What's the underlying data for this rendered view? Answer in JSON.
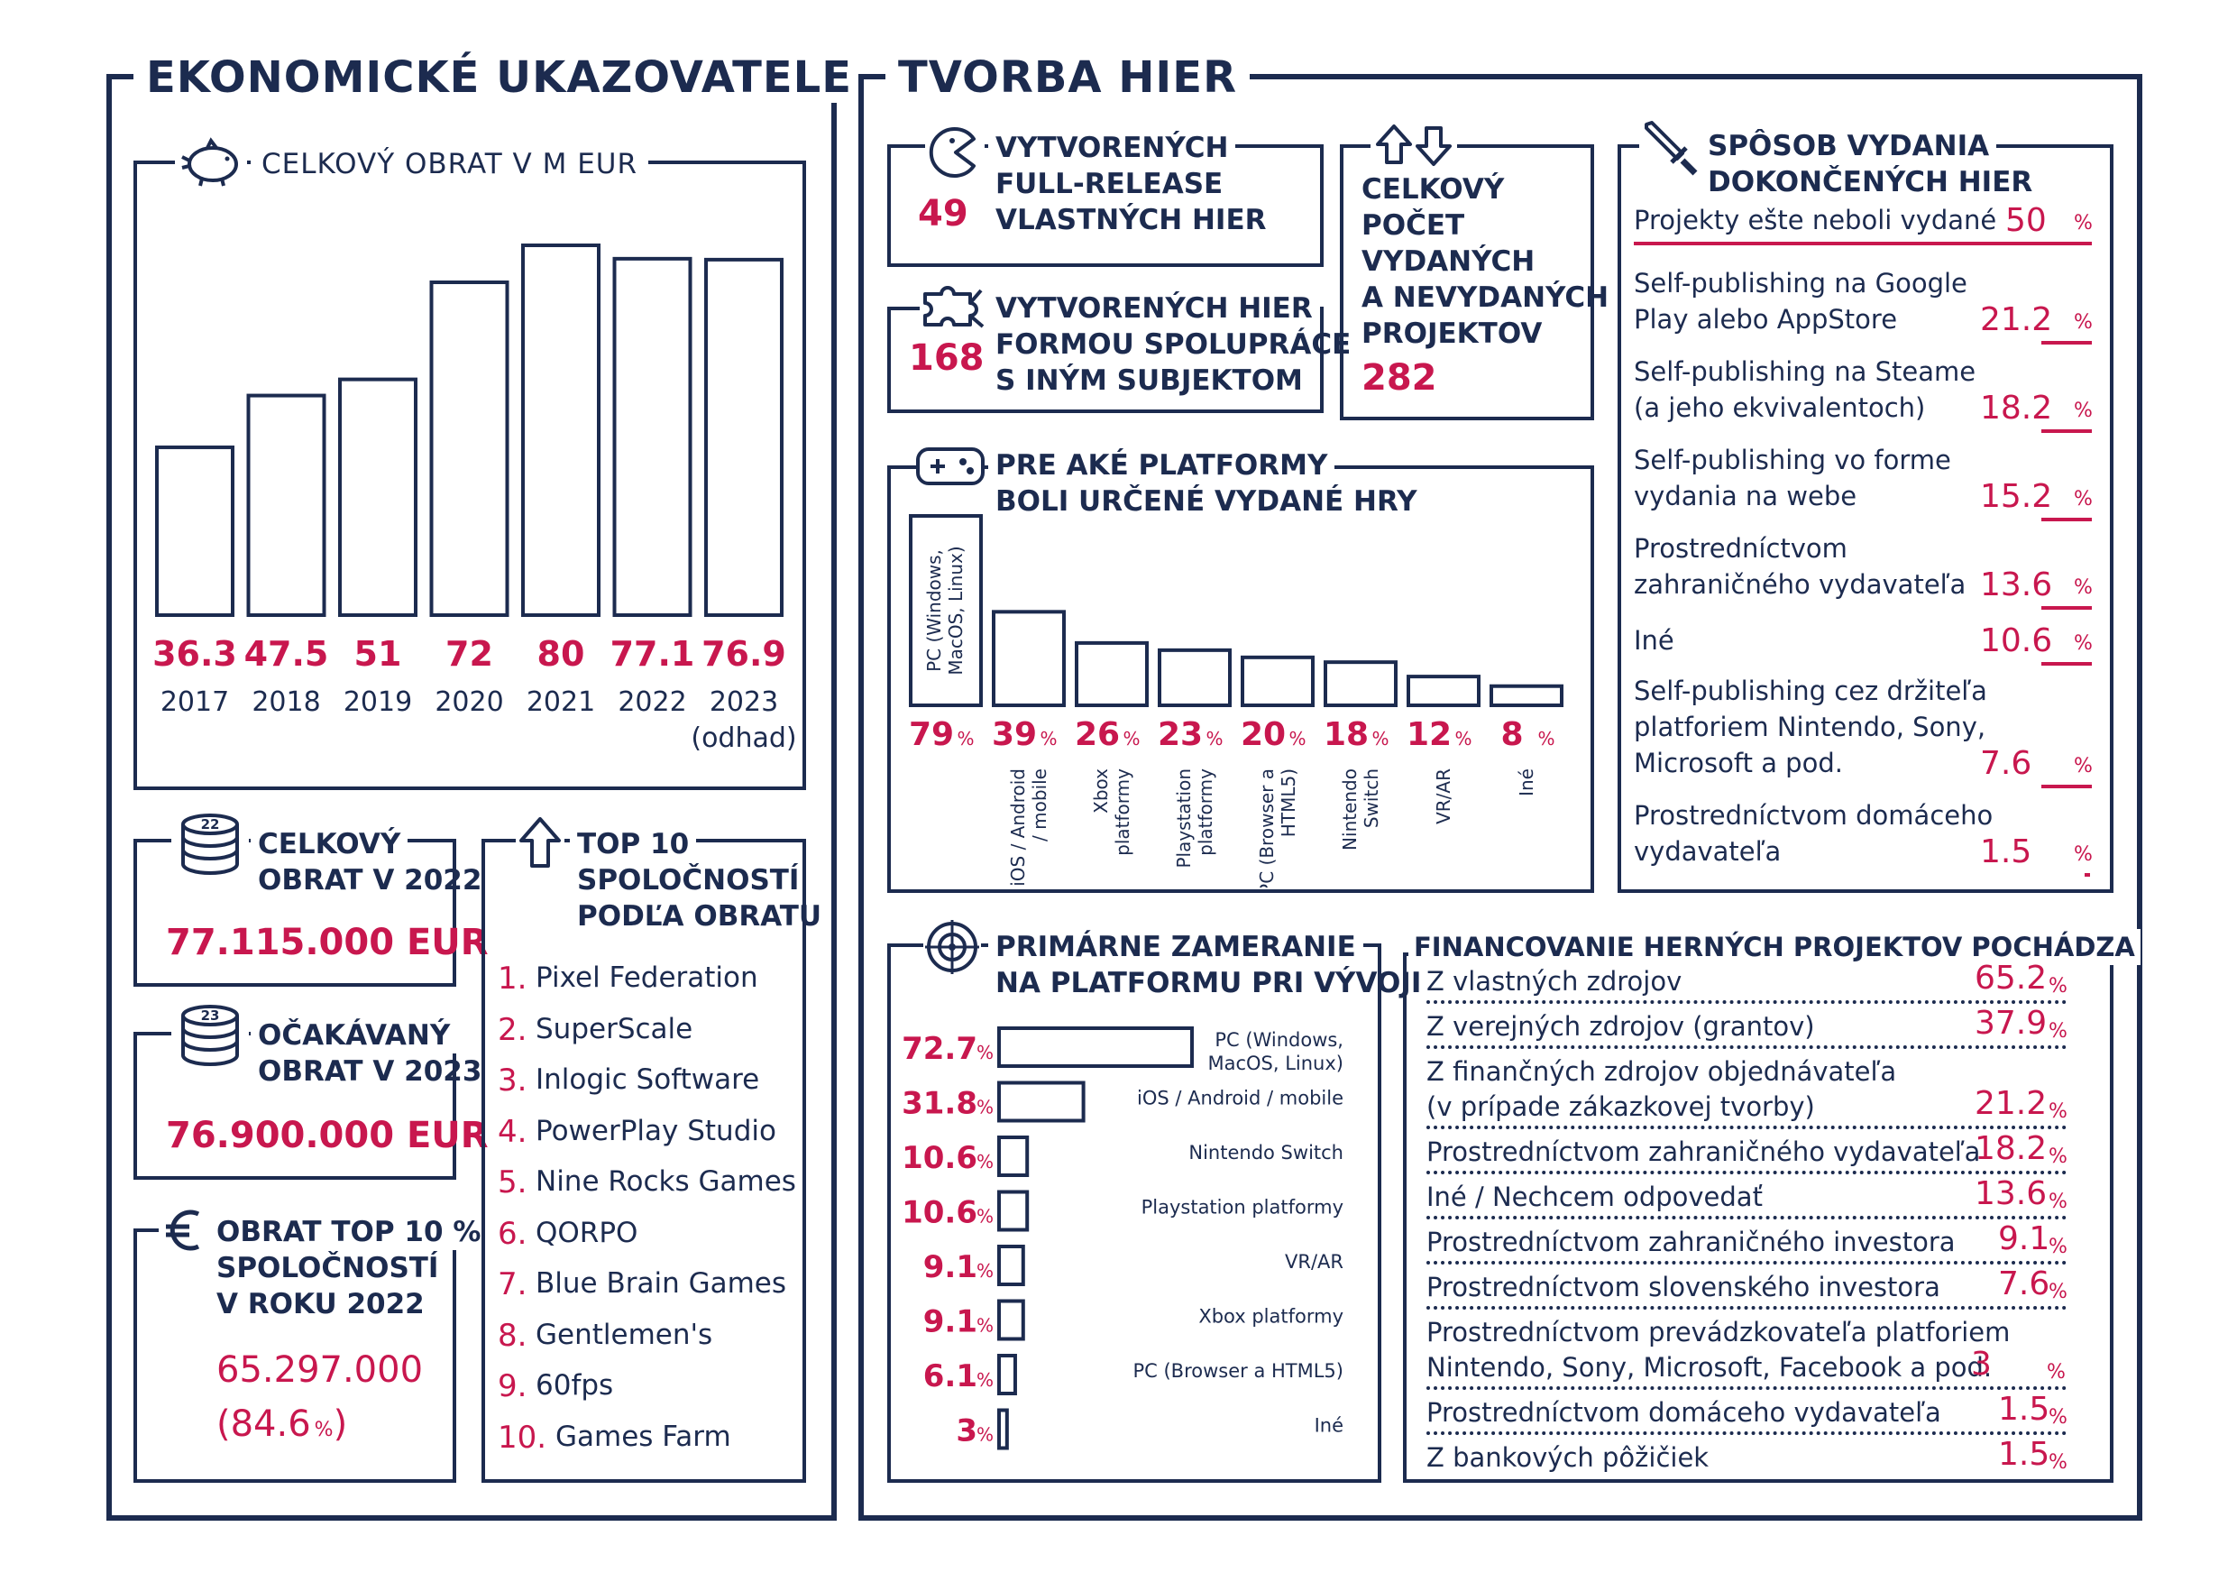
{
  "left_title": "EKONOMICKÉ UKAZOVATELE",
  "right_title": "TVORBA HIER",
  "colors": {
    "navy": "#1c2b4f",
    "accent": "#c8174e"
  },
  "chart_data": [
    {
      "type": "bar",
      "title": "CELKOVÝ OBRAT V M EUR",
      "categories": [
        "2017",
        "2018",
        "2019",
        "2020",
        "2021",
        "2022",
        "2023"
      ],
      "category_note": "(odhad)",
      "values": [
        36.3,
        47.5,
        51,
        72,
        80,
        77.1,
        76.9
      ],
      "value_labels": [
        "36.3",
        "47.5",
        "51",
        "72",
        "80",
        "77.1",
        "76.9"
      ]
    },
    {
      "type": "bar",
      "title": "PRE AKÉ PLATFORMY BOLI URČENÉ VYDANÉ HRY",
      "categories": [
        "PC (Windows, MacOS, Linux)",
        "iOS / Android / mobile",
        "Xbox platformy",
        "Playstation platformy",
        "PC (Browser a HTML5)",
        "Nintendo Switch",
        "VR/AR",
        "Iné"
      ],
      "values": [
        79,
        39,
        26,
        23,
        20,
        18,
        12,
        8
      ],
      "unit": "%"
    },
    {
      "type": "bar",
      "orientation": "horizontal",
      "title": "PRIMÁRNE ZAMERANIE NA PLATFORMU PRI VÝVOJI",
      "categories": [
        "PC (Windows, MacOS, Linux)",
        "iOS / Android / mobile",
        "Nintendo Switch",
        "Playstation platformy",
        "VR/AR",
        "Xbox platformy",
        "PC (Browser a HTML5)",
        "Iné"
      ],
      "values": [
        72.7,
        31.8,
        10.6,
        10.6,
        9.1,
        9.1,
        6.1,
        3
      ],
      "value_labels": [
        "72.7",
        "31.8",
        "10.6",
        "10.6",
        "9.1",
        "9.1",
        "6.1",
        "3"
      ],
      "unit": "%"
    }
  ],
  "obrat2022": {
    "title_l1": "CELKOVÝ",
    "title_l2": "OBRAT V 2022",
    "value": "77.115.000 EUR",
    "badge": "22"
  },
  "obrat2023": {
    "title_l1": "OČAKÁVANÝ",
    "title_l2": "OBRAT V 2023",
    "value": "76.900.000 EUR",
    "badge": "23"
  },
  "top10obrat": {
    "title_l1": "OBRAT TOP 10 %",
    "title_l2": "SPOLOČNOSTÍ",
    "title_l3": "V ROKU 2022",
    "value": "65.297.000",
    "share_open": "(84.6",
    "share_pct": "%",
    "share_close": ")"
  },
  "top10": {
    "title_l1": "TOP 10",
    "title_l2": "SPOLOČNOSTÍ",
    "title_l3": "PODĽA OBRATU",
    "items": [
      {
        "rank": "1.",
        "name": "Pixel Federation"
      },
      {
        "rank": "2.",
        "name": "SuperScale"
      },
      {
        "rank": "3.",
        "name": "Inlogic Software"
      },
      {
        "rank": "4.",
        "name": "PowerPlay Studio"
      },
      {
        "rank": "5.",
        "name": "Nine Rocks Games"
      },
      {
        "rank": "6.",
        "name": "QORPO"
      },
      {
        "rank": "7.",
        "name": "Blue Brain Games"
      },
      {
        "rank": "8.",
        "name": "Gentlemen's"
      },
      {
        "rank": "9.",
        "name": "60fps"
      },
      {
        "rank": "10.",
        "name": "Games Farm"
      }
    ]
  },
  "fullrelease": {
    "l1": "VYTVORENÝCH",
    "l2": "FULL-RELEASE",
    "l3": "VLASTNÝCH HIER",
    "value": "49"
  },
  "coop": {
    "l1": "VYTVORENÝCH HIER",
    "l2": "FORMOU SPOLUPRÁCE",
    "l3": "S INÝM SUBJEKTOM",
    "value": "168"
  },
  "totalprojects": {
    "l1": "CELKOVÝ",
    "l2": "POČET",
    "l3": "VYDANÝCH",
    "l4": "A NEVYDANÝCH",
    "l5": "PROJEKTOV",
    "value": "282"
  },
  "platforms_title": {
    "l1": "PRE AKÉ PLATFORMY",
    "l2": "BOLI URČENÉ VYDANÉ HRY"
  },
  "publishing": {
    "title_l1": "SPÔSOB VYDANIA",
    "title_l2": "DOKONČENÝCH HIER",
    "items": [
      {
        "lines": [
          "Projekty ešte neboli vydané"
        ],
        "value": "50",
        "pct": "%"
      },
      {
        "lines": [
          "Self-publishing na Google",
          "Play alebo AppStore"
        ],
        "value": "21.2",
        "pct": "%"
      },
      {
        "lines": [
          "Self-publishing na Steame",
          "(a jeho ekvivalentoch)"
        ],
        "value": "18.2",
        "pct": "%"
      },
      {
        "lines": [
          "Self-publishing vo forme",
          "vydania na webe"
        ],
        "value": "15.2",
        "pct": "%"
      },
      {
        "lines": [
          "Prostredníctvom",
          "zahraničného vydavateľa"
        ],
        "value": "13.6",
        "pct": "%"
      },
      {
        "lines": [
          "Iné"
        ],
        "value": "10.6",
        "pct": "%"
      },
      {
        "lines": [
          "Self-publishing cez držiteľa",
          "platforiem Nintendo, Sony,",
          "Microsoft a pod."
        ],
        "value": "7.6",
        "pct": "%"
      },
      {
        "lines": [
          "Prostredníctvom domáceho",
          "vydavateľa"
        ],
        "value": "1.5",
        "pct": "%"
      }
    ]
  },
  "focus_title": {
    "l1": "PRIMÁRNE ZAMERANIE",
    "l2": "NA PLATFORMU PRI VÝVOJI"
  },
  "financing": {
    "title": "FINANCOVANIE HERNÝCH PROJEKTOV POCHÁDZA",
    "items": [
      {
        "lines": [
          "Z vlastných zdrojov"
        ],
        "value": "65.2",
        "pct": "%"
      },
      {
        "lines": [
          "Z verejných zdrojov (grantov)"
        ],
        "value": "37.9",
        "pct": "%"
      },
      {
        "lines": [
          "Z finančných zdrojov objednávateľa",
          "(v prípade zákazkovej tvorby)"
        ],
        "value": "21.2",
        "pct": "%"
      },
      {
        "lines": [
          "Prostredníctvom zahraničného vydavateľa"
        ],
        "value": "18.2",
        "pct": "%"
      },
      {
        "lines": [
          "Iné / Nechcem odpovedať"
        ],
        "value": "13.6",
        "pct": "%"
      },
      {
        "lines": [
          "Prostredníctvom zahraničného investora"
        ],
        "value": "9.1",
        "pct": "%"
      },
      {
        "lines": [
          "Prostredníctvom slovenského investora"
        ],
        "value": "7.6",
        "pct": "%"
      },
      {
        "lines": [
          "Prostredníctvom prevádzkovateľa platforiem",
          "Nintendo, Sony, Microsoft, Facebook a pod."
        ],
        "value": "3",
        "pct": "%"
      },
      {
        "lines": [
          "Prostredníctvom domáceho vydavateľa"
        ],
        "value": "1.5",
        "pct": "%"
      },
      {
        "lines": [
          "Z bankových pôžičiek"
        ],
        "value": "1.5",
        "pct": "%"
      }
    ]
  },
  "icons": [
    "piggy-bank-icon",
    "coin-stack-icon",
    "arrow-up-icon",
    "euro-icon",
    "pacman-icon",
    "puzzle-icon",
    "up-down-arrows-icon",
    "sword-icon",
    "gamepad-icon",
    "target-icon"
  ]
}
